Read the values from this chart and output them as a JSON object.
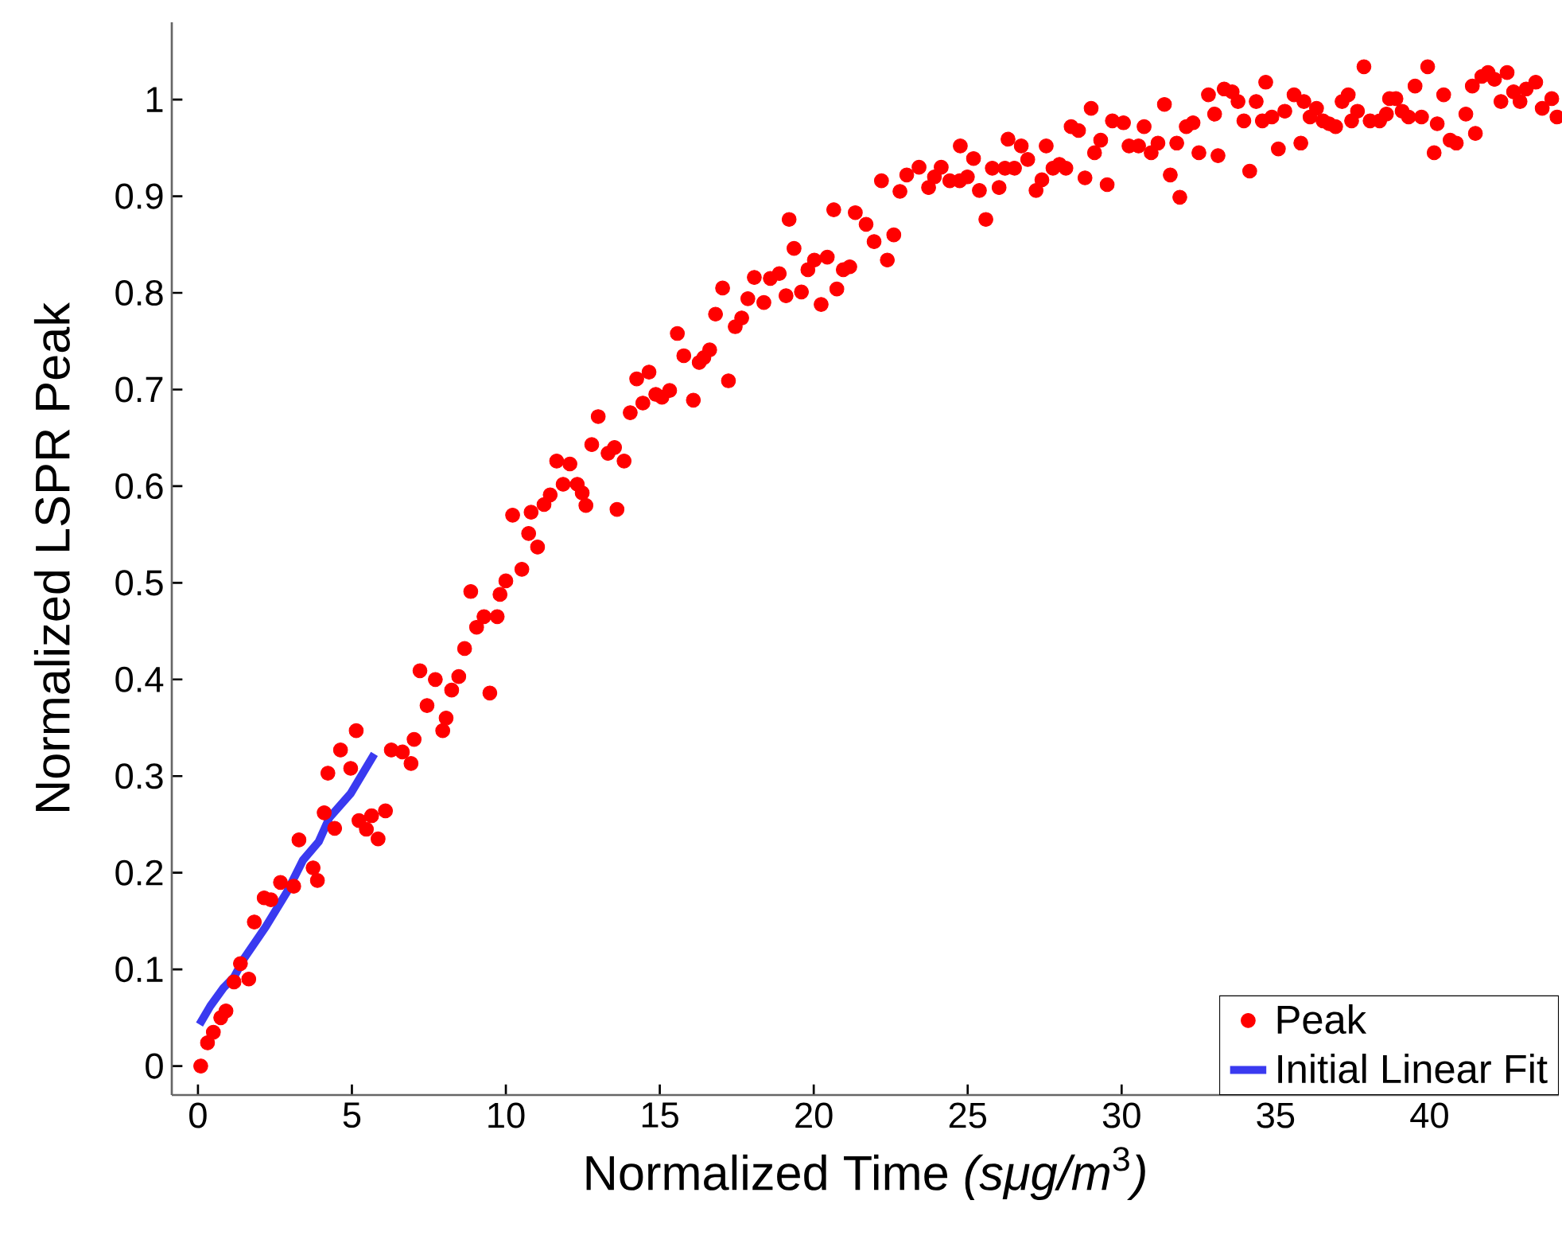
{
  "chart_data": {
    "type": "scatter",
    "xlabel": "Normalized Time *(sμg/m*$^{3}$*)*",
    "ylabel": "Normalized LSPR Peak",
    "xlim": [
      -0.85,
      44.2
    ],
    "ylim": [
      -0.03,
      1.08
    ],
    "xticks": [
      0,
      5,
      10,
      15,
      20,
      25,
      30,
      35,
      40
    ],
    "yticks": [
      0,
      0.1,
      0.2,
      0.3,
      0.4,
      0.5,
      0.6,
      0.7,
      0.8,
      0.9,
      1
    ],
    "grid": false,
    "legend": "bottom right",
    "marker": "circle",
    "series": [
      {
        "name": "Peak",
        "color": "#ff0000",
        "x": [
          0.09,
          0.31,
          0.5,
          0.74,
          0.91,
          1.17,
          1.38,
          1.65,
          1.83,
          2.15,
          2.37,
          2.68,
          3.11,
          3.28,
          3.74,
          3.88,
          4.1,
          4.22,
          4.44,
          4.63,
          4.96,
          5.14,
          5.23,
          5.47,
          5.64,
          5.85,
          6.09,
          6.28,
          6.64,
          6.92,
          7.02,
          7.21,
          7.44,
          7.71,
          7.95,
          8.06,
          8.24,
          8.47,
          8.66,
          8.86,
          9.05,
          9.29,
          9.48,
          9.72,
          9.81,
          10.0,
          10.22,
          10.52,
          10.74,
          10.82,
          11.03,
          11.24,
          11.44,
          11.65,
          11.86,
          12.08,
          12.32,
          12.48,
          12.6,
          12.79,
          13.0,
          13.32,
          13.53,
          13.61,
          13.84,
          14.04,
          14.25,
          14.45,
          14.65,
          14.87,
          15.07,
          15.32,
          15.57,
          15.78,
          16.09,
          16.28,
          16.43,
          16.62,
          16.81,
          17.04,
          17.23,
          17.45,
          17.66,
          17.86,
          18.07,
          18.38,
          18.59,
          18.88,
          19.1,
          19.2,
          19.36,
          19.6,
          19.81,
          20.02,
          20.24,
          20.44,
          20.65,
          20.75,
          20.96,
          21.17,
          21.35,
          21.7,
          21.96,
          22.2,
          22.39,
          22.6,
          22.8,
          23.02,
          23.42,
          23.73,
          23.92,
          24.14,
          24.42,
          24.74,
          24.76,
          24.99,
          25.19,
          25.38,
          25.59,
          25.8,
          26.02,
          26.21,
          26.31,
          26.52,
          26.74,
          26.95,
          27.22,
          27.41,
          27.55,
          27.77,
          27.98,
          28.19,
          28.36,
          28.6,
          28.81,
          29.01,
          29.12,
          29.32,
          29.53,
          29.7,
          30.06,
          30.24,
          30.55,
          30.73,
          30.96,
          31.18,
          31.39,
          31.58,
          31.79,
          31.89,
          32.1,
          32.32,
          32.51,
          32.82,
          33.02,
          33.13,
          33.33,
          33.59,
          33.78,
          33.97,
          34.16,
          34.37,
          34.57,
          34.68,
          34.88,
          35.09,
          35.3,
          35.6,
          35.82,
          35.92,
          36.12,
          36.33,
          36.54,
          36.74,
          36.95,
          37.16,
          37.36,
          37.47,
          37.66,
          37.87,
          38.07,
          38.38,
          38.6,
          38.7,
          38.91,
          39.11,
          39.32,
          39.53,
          39.74,
          39.94,
          40.15,
          40.25,
          40.46,
          40.67,
          40.87,
          41.18,
          41.39,
          41.49,
          41.7,
          41.9,
          42.11,
          42.32,
          42.52,
          42.73,
          42.94,
          43.14,
          43.45,
          43.66,
          43.97,
          44.14
        ],
        "values": [
          0,
          0.024,
          0.035,
          0.05,
          0.057,
          0.087,
          0.106,
          0.09,
          0.149,
          0.174,
          0.172,
          0.19,
          0.186,
          0.234,
          0.205,
          0.192,
          0.262,
          0.303,
          0.246,
          0.327,
          0.308,
          0.347,
          0.254,
          0.245,
          0.259,
          0.235,
          0.264,
          0.327,
          0.325,
          0.313,
          0.338,
          0.409,
          0.373,
          0.4,
          0.347,
          0.36,
          0.389,
          0.403,
          0.432,
          0.491,
          0.454,
          0.465,
          0.386,
          0.465,
          0.488,
          0.502,
          0.57,
          0.514,
          0.551,
          0.573,
          0.537,
          0.581,
          0.591,
          0.626,
          0.602,
          0.623,
          0.602,
          0.593,
          0.58,
          0.643,
          0.672,
          0.634,
          0.64,
          0.576,
          0.626,
          0.676,
          0.711,
          0.686,
          0.718,
          0.695,
          0.692,
          0.699,
          0.758,
          0.735,
          0.689,
          0.728,
          0.733,
          0.741,
          0.778,
          0.805,
          0.709,
          0.765,
          0.774,
          0.794,
          0.816,
          0.79,
          0.815,
          0.82,
          0.797,
          0.876,
          0.846,
          0.801,
          0.824,
          0.834,
          0.788,
          0.837,
          0.886,
          0.804,
          0.824,
          0.827,
          0.883,
          0.871,
          0.853,
          0.916,
          0.834,
          0.86,
          0.905,
          0.922,
          0.93,
          0.909,
          0.92,
          0.93,
          0.916,
          0.916,
          0.952,
          0.92,
          0.939,
          0.906,
          0.876,
          0.929,
          0.909,
          0.929,
          0.959,
          0.929,
          0.952,
          0.938,
          0.906,
          0.917,
          0.952,
          0.929,
          0.933,
          0.929,
          0.972,
          0.968,
          0.919,
          0.991,
          0.945,
          0.958,
          0.912,
          0.978,
          0.976,
          0.952,
          0.952,
          0.972,
          0.945,
          0.955,
          0.995,
          0.922,
          0.955,
          0.899,
          0.972,
          0.976,
          0.945,
          1.005,
          0.985,
          0.942,
          1.011,
          1.008,
          0.998,
          0.978,
          0.926,
          0.998,
          0.978,
          1.018,
          0.982,
          0.949,
          0.988,
          1.005,
          0.955,
          0.998,
          0.982,
          0.991,
          0.978,
          0.975,
          0.972,
          0.998,
          1.005,
          0.978,
          0.988,
          1.034,
          0.978,
          0.978,
          0.985,
          1.001,
          1.001,
          0.988,
          0.982,
          1.014,
          0.982,
          1.034,
          0.945,
          0.975,
          1.005,
          0.958,
          0.955,
          0.985,
          1.014,
          0.965,
          1.024,
          1.028,
          1.021,
          0.998,
          1.028,
          1.008,
          0.998,
          1.011,
          1.018,
          0.991,
          1.001,
          0.982
        ]
      },
      {
        "name": "Initial Linear Fit",
        "type": "line",
        "color": "#3a3af0",
        "line_style": "solid",
        "marker": "none",
        "x": [
          0.05,
          0.4,
          0.83,
          1.17,
          1.51,
          2.2,
          2.89,
          3.41,
          3.92,
          4.27,
          4.96,
          5.73
        ],
        "values": [
          0.043,
          0.062,
          0.081,
          0.092,
          0.112,
          0.144,
          0.18,
          0.213,
          0.232,
          0.257,
          0.282,
          0.323
        ]
      }
    ]
  }
}
